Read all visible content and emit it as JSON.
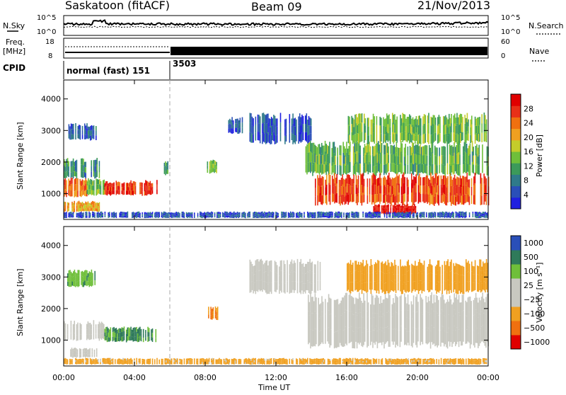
{
  "header": {
    "station": "Saskatoon (fitACF)",
    "beam": "Beam 09",
    "date": "21/Nov/2013"
  },
  "noise_panel": {
    "left_label": "N.Sky",
    "right_label": "N.Search",
    "ticks": [
      "10^5",
      "10^0"
    ]
  },
  "freq_panel": {
    "left_label_line1": "Freq.",
    "left_label_line2": "[MHz]",
    "left_ticks": [
      "18",
      "8"
    ],
    "right_ticks": [
      "60",
      "0"
    ],
    "right_label": "Nave"
  },
  "cpid_panel": {
    "label": "CPID",
    "segments": [
      {
        "name": "normal (fast) 151",
        "start_hour": 0,
        "end_hour": 6
      },
      {
        "name": "3503",
        "start_hour": 6,
        "end_hour": 24
      }
    ]
  },
  "colors": {
    "power_scale": [
      "#1f1fe0",
      "#2a4fb8",
      "#2f7a8a",
      "#3c9a5a",
      "#6fbf3a",
      "#c4cc2a",
      "#f0a020",
      "#f07010",
      "#e83018",
      "#e00000"
    ],
    "velocity_scale": [
      "#e00000",
      "#f07010",
      "#f0a020",
      "#c8c8c0",
      "#c8c8c0",
      "#6fbf3a",
      "#2f7a5a",
      "#2a4fb8"
    ],
    "ground_scatter": "#c8c8c0"
  },
  "chart_data": [
    {
      "type": "heatmap",
      "name": "power",
      "ylabel": "Slant Range [km]",
      "ylim": [
        180,
        4600
      ],
      "yticks": [
        1000,
        2000,
        3000,
        4000
      ],
      "xlim": [
        0,
        24
      ],
      "colorbar": {
        "label": "Power [dB]",
        "ticks": [
          "4",
          "8",
          "12",
          "16",
          "20",
          "24",
          "28"
        ],
        "range": [
          0,
          32
        ]
      },
      "regions": [
        {
          "t0": 0.0,
          "t1": 1.3,
          "r0": 900,
          "r1": 1500,
          "v": 24
        },
        {
          "t0": 1.3,
          "t1": 2.3,
          "r0": 950,
          "r1": 1450,
          "v": 14
        },
        {
          "t0": 2.3,
          "t1": 5.3,
          "r0": 950,
          "r1": 1400,
          "v": 28
        },
        {
          "t0": 0.0,
          "t1": 2.0,
          "r0": 420,
          "r1": 750,
          "v": 21
        },
        {
          "t0": 0.0,
          "t1": 2.0,
          "r0": 1500,
          "r1": 2100,
          "v": 10
        },
        {
          "t0": 0.2,
          "t1": 1.8,
          "r0": 2700,
          "r1": 3200,
          "v": 6
        },
        {
          "t0": 5.6,
          "t1": 5.9,
          "r0": 1600,
          "r1": 2000,
          "v": 10
        },
        {
          "t0": 8.1,
          "t1": 8.8,
          "r0": 1650,
          "r1": 2050,
          "v": 14
        },
        {
          "t0": 9.3,
          "t1": 10.1,
          "r0": 2900,
          "r1": 3400,
          "v": 6
        },
        {
          "t0": 10.5,
          "t1": 14.0,
          "r0": 2600,
          "r1": 3500,
          "v": 5
        },
        {
          "t0": 13.6,
          "t1": 24.0,
          "r0": 1600,
          "r1": 2600,
          "v": 13
        },
        {
          "t0": 14.2,
          "t1": 24.0,
          "r0": 650,
          "r1": 1600,
          "v": 26
        },
        {
          "t0": 17.5,
          "t1": 20.0,
          "r0": 350,
          "r1": 650,
          "v": 30
        },
        {
          "t0": 16.0,
          "t1": 24.0,
          "r0": 2600,
          "r1": 3500,
          "v": 14
        },
        {
          "t0": 0.0,
          "t1": 24.0,
          "r0": 230,
          "r1": 420,
          "v": 5
        }
      ]
    },
    {
      "type": "heatmap",
      "name": "velocity",
      "ylabel": "Slant Range [km]",
      "ylim": [
        180,
        4600
      ],
      "yticks": [
        1000,
        2000,
        3000,
        4000
      ],
      "xlim": [
        0,
        24
      ],
      "xlabel": "Time UT",
      "xticks": [
        "00:00",
        "04:00",
        "08:00",
        "12:00",
        "16:00",
        "20:00",
        "00:00"
      ],
      "colorbar": {
        "label": "Velocity [m s⁻¹]",
        "ticks": [
          "1000",
          "500",
          "100",
          "25",
          "−25",
          "−100",
          "−500",
          "−1000"
        ]
      },
      "regions": [
        {
          "t0": 0.0,
          "t1": 2.3,
          "r0": 1000,
          "r1": 1600,
          "v": "gs"
        },
        {
          "t0": 0.3,
          "t1": 2.0,
          "r0": 450,
          "r1": 750,
          "v": "gs"
        },
        {
          "t0": 2.3,
          "t1": 5.3,
          "r0": 950,
          "r1": 1400,
          "v": 300
        },
        {
          "t0": 0.2,
          "t1": 1.8,
          "r0": 2700,
          "r1": 3200,
          "v": 200
        },
        {
          "t0": 8.1,
          "t1": 8.8,
          "r0": 1650,
          "r1": 2050,
          "v": -300
        },
        {
          "t0": 10.5,
          "t1": 14.5,
          "r0": 2500,
          "r1": 3500,
          "v": "gs"
        },
        {
          "t0": 13.8,
          "t1": 24.0,
          "r0": 800,
          "r1": 2400,
          "v": "gs"
        },
        {
          "t0": 16.0,
          "t1": 24.0,
          "r0": 2500,
          "r1": 3500,
          "v": -150
        },
        {
          "t0": 0.0,
          "t1": 24.0,
          "r0": 230,
          "r1": 420,
          "v": -120
        }
      ]
    }
  ]
}
